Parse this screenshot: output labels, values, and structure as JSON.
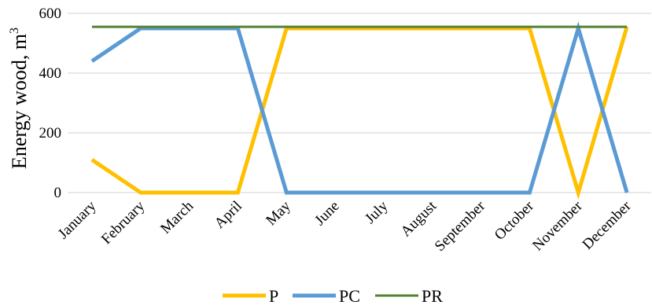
{
  "chart_data": {
    "type": "line",
    "categories": [
      "January",
      "February",
      "March",
      "April",
      "May",
      "June",
      "July",
      "August",
      "September",
      "October",
      "November",
      "December"
    ],
    "series": [
      {
        "name": "P",
        "color": "#ffc000",
        "values": [
          110,
          0,
          0,
          0,
          550,
          550,
          550,
          550,
          550,
          550,
          0,
          555
        ]
      },
      {
        "name": "PC",
        "color": "#5b9bd5",
        "values": [
          440,
          550,
          550,
          550,
          0,
          0,
          0,
          0,
          0,
          0,
          550,
          0
        ]
      },
      {
        "name": "PR",
        "color": "#548235",
        "values": [
          555,
          555,
          555,
          555,
          555,
          555,
          555,
          555,
          555,
          555,
          555,
          555
        ]
      }
    ],
    "title": "",
    "xlabel": "",
    "ylabel": "Energy wood, m",
    "ylabel_superscript": "3",
    "ylim": [
      0,
      600
    ],
    "yticks": [
      "0",
      "200",
      "400",
      "600"
    ],
    "grid": true,
    "legend_position": "bottom"
  }
}
